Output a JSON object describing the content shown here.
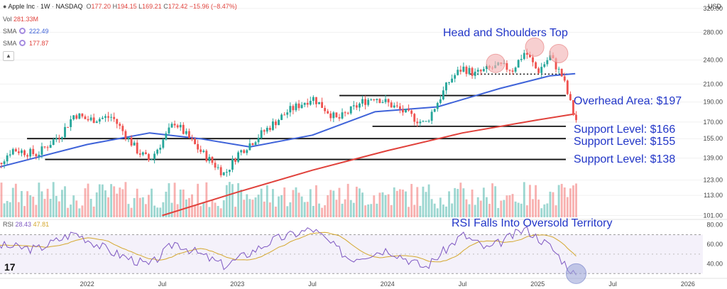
{
  "header": {
    "symbol": "Apple Inc",
    "interval": "1W",
    "exchange": "NASDAQ",
    "open_label": "O",
    "open": "177.20",
    "high_label": "H",
    "high": "194.15",
    "low_label": "L",
    "low": "169.21",
    "close_label": "C",
    "close": "172.42",
    "change": "−15.96 (−8.47%)",
    "vol_label": "Vol",
    "vol": "281.33M",
    "sma1_label": "SMA",
    "sma1": "222.49",
    "sma2_label": "SMA",
    "sma2": "177.87",
    "currency": "USD"
  },
  "colors": {
    "up": "#26a69a",
    "down": "#ef5350",
    "sma50": "#3f63d9",
    "sma200": "#e0413b",
    "annotation": "#2236c8",
    "rsi": "#7e57c2",
    "rsi_ma": "#d4a72c"
  },
  "annotations": {
    "hs_title": "Head and Shoulders Top",
    "overhead": "Overhead Area: $197",
    "support1": "Support Level: $166",
    "support2": "Support Level: $155",
    "support3": "Support Level: $138",
    "rsi_title": "RSI Falls Into Oversold Territory"
  },
  "rsi_legend": {
    "label": "RSI",
    "value": "28.43",
    "ma": "47.81"
  },
  "chart_data": {
    "type": "line",
    "subtype": "candlestick-with-volume-and-rsi",
    "price_axis": {
      "ticks": [
        101,
        113,
        123,
        139,
        155,
        170,
        190,
        210,
        240,
        280,
        320
      ],
      "scale": "log",
      "ylim": [
        100,
        325
      ]
    },
    "rsi_axis": {
      "ticks": [
        40,
        60,
        80
      ],
      "ylim": [
        28,
        82
      ],
      "levels": [
        30,
        70
      ]
    },
    "x_ticks": [
      "2022",
      "Jul",
      "2023",
      "Jul",
      "2024",
      "Jul",
      "2025",
      "Jul",
      "2026"
    ],
    "series_close": [
      {
        "x": "2021-05",
        "y": 125
      },
      {
        "x": "2021-07",
        "y": 146
      },
      {
        "x": "2021-09",
        "y": 142
      },
      {
        "x": "2021-11",
        "y": 160
      },
      {
        "x": "2021-12",
        "y": 178
      },
      {
        "x": "2022-01",
        "y": 172
      },
      {
        "x": "2022-03",
        "y": 175
      },
      {
        "x": "2022-05",
        "y": 145
      },
      {
        "x": "2022-06",
        "y": 137
      },
      {
        "x": "2022-08",
        "y": 170
      },
      {
        "x": "2022-10",
        "y": 145
      },
      {
        "x": "2022-12",
        "y": 127
      },
      {
        "x": "2023-01",
        "y": 142
      },
      {
        "x": "2023-03",
        "y": 160
      },
      {
        "x": "2023-05",
        "y": 180
      },
      {
        "x": "2023-07",
        "y": 195
      },
      {
        "x": "2023-09",
        "y": 172
      },
      {
        "x": "2023-11",
        "y": 190
      },
      {
        "x": "2023-12",
        "y": 196
      },
      {
        "x": "2024-02",
        "y": 182
      },
      {
        "x": "2024-04",
        "y": 168
      },
      {
        "x": "2024-05",
        "y": 190
      },
      {
        "x": "2024-06",
        "y": 215
      },
      {
        "x": "2024-07",
        "y": 230
      },
      {
        "x": "2024-08",
        "y": 222
      },
      {
        "x": "2024-09",
        "y": 228
      },
      {
        "x": "2024-10",
        "y": 232
      },
      {
        "x": "2024-11",
        "y": 228
      },
      {
        "x": "2024-12",
        "y": 252
      },
      {
        "x": "2025-01",
        "y": 225
      },
      {
        "x": "2025-02",
        "y": 245
      },
      {
        "x": "2025-03",
        "y": 218
      },
      {
        "x": "2025-04",
        "y": 172
      }
    ],
    "sma_50w": [
      {
        "x": "2021-05",
        "y": 130
      },
      {
        "x": "2022-01",
        "y": 150
      },
      {
        "x": "2022-06",
        "y": 160
      },
      {
        "x": "2022-10",
        "y": 155
      },
      {
        "x": "2023-02",
        "y": 148
      },
      {
        "x": "2023-07",
        "y": 158
      },
      {
        "x": "2023-12",
        "y": 180
      },
      {
        "x": "2024-05",
        "y": 185
      },
      {
        "x": "2024-10",
        "y": 205
      },
      {
        "x": "2025-02",
        "y": 220
      },
      {
        "x": "2025-04",
        "y": 222.49
      }
    ],
    "sma_200w": [
      {
        "x": "2022-07",
        "y": 101
      },
      {
        "x": "2023-01",
        "y": 115
      },
      {
        "x": "2023-07",
        "y": 130
      },
      {
        "x": "2024-01",
        "y": 145
      },
      {
        "x": "2024-07",
        "y": 160
      },
      {
        "x": "2025-01",
        "y": 172
      },
      {
        "x": "2025-04",
        "y": 177.87
      }
    ],
    "levels": [
      197,
      166,
      155,
      138
    ],
    "rsi": [
      {
        "x": "2021-05",
        "y": 60
      },
      {
        "x": "2021-09",
        "y": 55
      },
      {
        "x": "2021-12",
        "y": 72
      },
      {
        "x": "2022-03",
        "y": 52
      },
      {
        "x": "2022-06",
        "y": 38
      },
      {
        "x": "2022-08",
        "y": 62
      },
      {
        "x": "2022-12",
        "y": 38
      },
      {
        "x": "2023-04",
        "y": 65
      },
      {
        "x": "2023-07",
        "y": 76
      },
      {
        "x": "2023-10",
        "y": 45
      },
      {
        "x": "2024-01",
        "y": 55
      },
      {
        "x": "2024-04",
        "y": 36
      },
      {
        "x": "2024-07",
        "y": 70
      },
      {
        "x": "2024-09",
        "y": 55
      },
      {
        "x": "2024-12",
        "y": 76
      },
      {
        "x": "2025-02",
        "y": 58
      },
      {
        "x": "2025-04",
        "y": 28.43
      }
    ]
  }
}
